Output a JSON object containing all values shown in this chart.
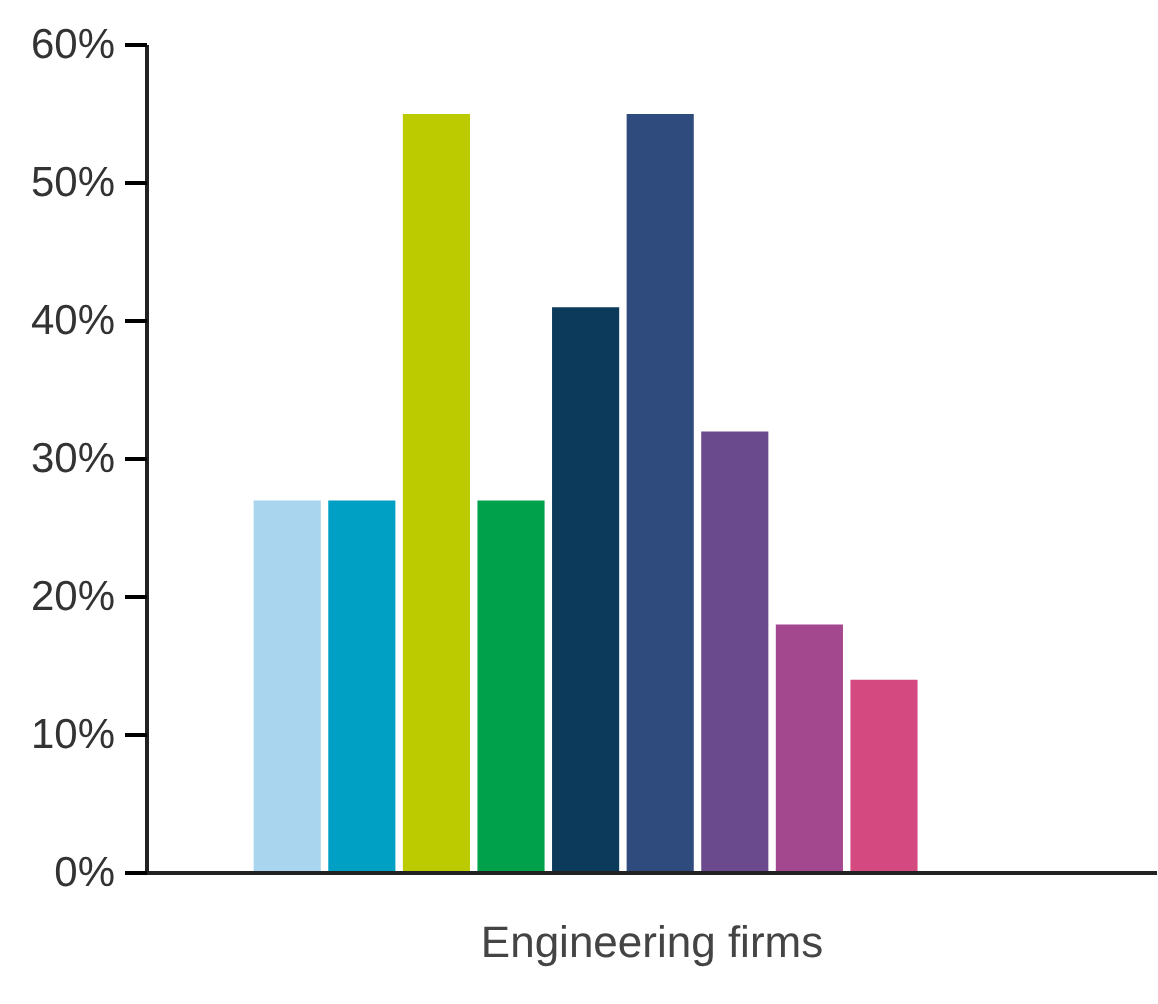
{
  "chart_data": {
    "type": "bar",
    "xlabel": "Engineering firms",
    "categories": [
      null,
      null,
      null,
      null,
      null,
      null,
      null,
      null,
      null
    ],
    "values": [
      27,
      27,
      55,
      27,
      41,
      55,
      32,
      18,
      14
    ],
    "colors": [
      "#a9d6ee",
      "#00a0c4",
      "#bccb00",
      "#00a14b",
      "#0b3a5b",
      "#2f4a7c",
      "#6a4a8c",
      "#a3478f",
      "#d44a80"
    ],
    "ylim": [
      0,
      60
    ],
    "yticks": [
      {
        "value": 0,
        "label": "0%"
      },
      {
        "value": 10,
        "label": "10%"
      },
      {
        "value": 20,
        "label": "20%"
      },
      {
        "value": 30,
        "label": "30%"
      },
      {
        "value": 40,
        "label": "40%"
      },
      {
        "value": 50,
        "label": "50%"
      },
      {
        "value": 60,
        "label": "60%"
      }
    ],
    "grid": false
  }
}
